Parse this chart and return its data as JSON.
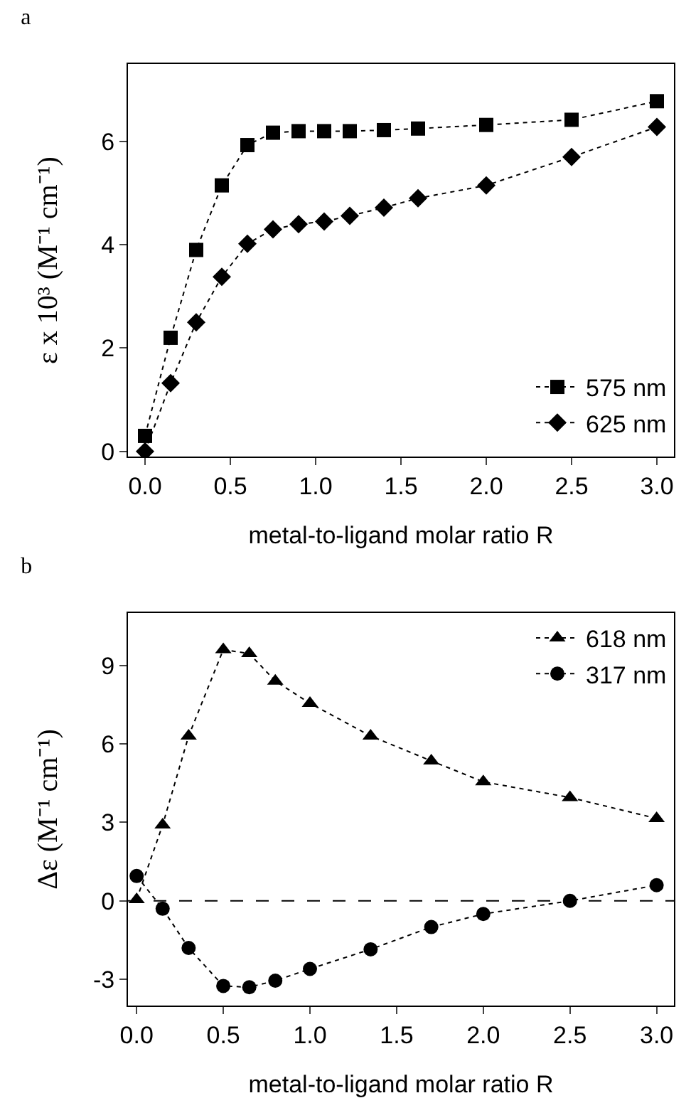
{
  "chart_data": [
    {
      "type": "line",
      "title": "a",
      "xlabel": "metal-to-ligand molar ratio R",
      "ylabel": "ε x 10³ (M⁻¹ cm⁻¹)",
      "xlim": [
        -0.1,
        3.1
      ],
      "ylim": [
        -0.1,
        7.5
      ],
      "xticks": [
        {
          "value": 0,
          "label": "0.0"
        },
        0.5,
        {
          "value": 1,
          "label": "1.0"
        },
        1.5,
        {
          "value": 2,
          "label": "2.0"
        },
        2.5,
        {
          "value": 3,
          "label": "3.0"
        }
      ],
      "yticks": [
        0,
        2,
        4,
        6
      ],
      "grid": false,
      "legend": "bottom right",
      "line_style": "dotted",
      "series": [
        {
          "name": "575 nm",
          "color": "#000000",
          "marker": "square",
          "x": [
            0,
            0.15,
            0.3,
            0.45,
            0.6,
            0.75,
            0.9,
            1.05,
            1.2,
            1.4,
            1.6,
            2.0,
            2.5,
            3.0
          ],
          "values": [
            0.3,
            2.2,
            3.9,
            5.15,
            5.93,
            6.17,
            6.2,
            6.2,
            6.2,
            6.22,
            6.25,
            6.32,
            6.42,
            6.78
          ]
        },
        {
          "name": "625 nm",
          "color": "#000000",
          "marker": "diamond",
          "x": [
            0,
            0.15,
            0.3,
            0.45,
            0.6,
            0.75,
            0.9,
            1.05,
            1.2,
            1.4,
            1.6,
            2.0,
            2.5,
            3.0
          ],
          "values": [
            0,
            1.32,
            2.5,
            3.38,
            4.02,
            4.3,
            4.4,
            4.45,
            4.56,
            4.72,
            4.9,
            5.15,
            5.7,
            6.28
          ]
        }
      ]
    },
    {
      "type": "line",
      "title": "b",
      "xlabel": "metal-to-ligand molar ratio R",
      "ylabel": "Δε (M⁻¹ cm⁻¹)",
      "xlim": [
        -0.05,
        3.1
      ],
      "ylim": [
        -4,
        11
      ],
      "xticks": [
        {
          "value": 0,
          "label": "0.0"
        },
        0.5,
        {
          "value": 1,
          "label": "1.0"
        },
        1.5,
        {
          "value": 2,
          "label": "2.0"
        },
        2.5,
        {
          "value": 3,
          "label": "3.0"
        }
      ],
      "yticks": [
        -3,
        0,
        3,
        6,
        9
      ],
      "grid": false,
      "legend": "top right",
      "line_style": "dotted",
      "ref_lines": [
        {
          "axis": "y",
          "value": 0,
          "line_style": "dashed",
          "color": "#000000"
        }
      ],
      "series": [
        {
          "name": "618 nm",
          "color": "#000000",
          "marker": "triangle",
          "x": [
            0,
            0.15,
            0.3,
            0.5,
            0.65,
            0.8,
            1.0,
            1.35,
            1.7,
            2.0,
            2.5,
            3.0
          ],
          "values": [
            0.05,
            2.9,
            6.3,
            9.6,
            9.45,
            8.4,
            7.55,
            6.3,
            5.35,
            4.55,
            3.95,
            3.15
          ]
        },
        {
          "name": "317 nm",
          "color": "#000000",
          "marker": "circle",
          "x": [
            0,
            0.15,
            0.3,
            0.5,
            0.65,
            0.8,
            1.0,
            1.35,
            1.7,
            2.0,
            2.5,
            3.0
          ],
          "values": [
            0.95,
            -0.3,
            -1.8,
            -3.25,
            -3.3,
            -3.05,
            -2.6,
            -1.85,
            -1.0,
            -0.5,
            0.0,
            0.6
          ]
        }
      ]
    }
  ]
}
